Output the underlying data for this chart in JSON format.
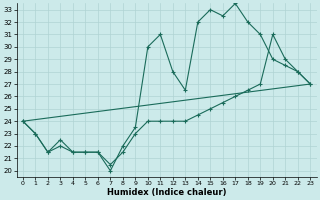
{
  "xlabel": "Humidex (Indice chaleur)",
  "bg_color": "#cceaea",
  "grid_color": "#b0d4d4",
  "line_color": "#1a6b5a",
  "xlim": [
    -0.5,
    23.5
  ],
  "ylim": [
    19.5,
    33.5
  ],
  "xticks": [
    0,
    1,
    2,
    3,
    4,
    5,
    6,
    7,
    8,
    9,
    10,
    11,
    12,
    13,
    14,
    15,
    16,
    17,
    18,
    19,
    20,
    21,
    22,
    23
  ],
  "yticks": [
    20,
    21,
    22,
    23,
    24,
    25,
    26,
    27,
    28,
    29,
    30,
    31,
    32,
    33
  ],
  "line1_x": [
    0,
    1,
    2,
    3,
    4,
    5,
    6,
    7,
    8,
    9,
    10,
    11,
    12,
    13,
    14,
    15,
    16,
    17,
    18,
    19,
    20,
    21,
    22,
    23
  ],
  "line1_y": [
    24.0,
    23.0,
    21.5,
    22.5,
    21.5,
    21.5,
    21.5,
    20.0,
    22.0,
    23.5,
    30.0,
    31.0,
    28.0,
    26.5,
    32.0,
    33.0,
    32.5,
    33.5,
    32.0,
    31.0,
    29.0,
    28.5,
    28.0,
    27.0
  ],
  "line2_x": [
    0,
    1,
    2,
    3,
    4,
    5,
    6,
    7,
    8,
    9,
    10,
    11,
    12,
    13,
    14,
    15,
    16,
    17,
    18,
    19,
    20,
    21,
    22,
    23
  ],
  "line2_y": [
    24.0,
    23.0,
    21.5,
    22.0,
    21.5,
    21.5,
    21.5,
    20.5,
    21.5,
    23.0,
    24.0,
    24.0,
    24.0,
    24.0,
    24.5,
    25.0,
    25.5,
    26.0,
    26.5,
    27.0,
    31.0,
    29.0,
    28.0,
    27.0
  ],
  "line3_x": [
    0,
    23
  ],
  "line3_y": [
    24.0,
    27.0
  ]
}
